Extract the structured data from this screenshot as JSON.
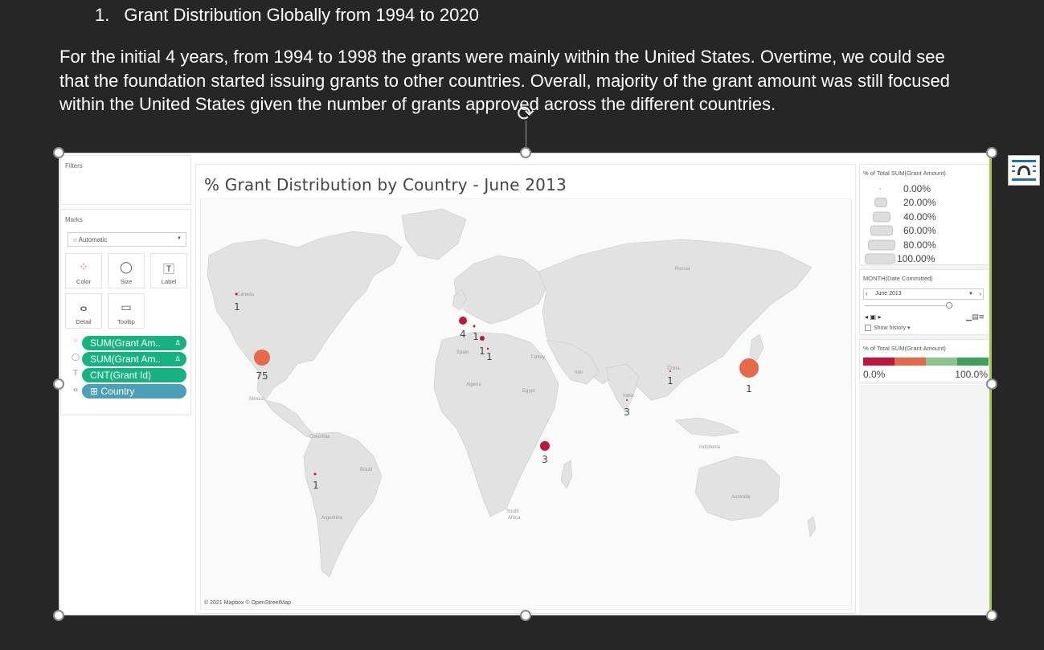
{
  "slide": {
    "heading_number": "1.",
    "heading_text": "Grant Distribution Globally from 1994 to 2020",
    "paragraph": "For the initial 4 years, from 1994 to 1998 the grants were mainly within the United States. Overtime, we could see that the foundation started issuing grants to other countries. Overall, majority of the grant amount was still focused within the United States given the number of grants approved across the different countries."
  },
  "tableau": {
    "filters_label": "Filters",
    "marks_label": "Marks",
    "mark_type": "Automatic",
    "mark_buttons": [
      {
        "label": "Color",
        "glyph": "⁘"
      },
      {
        "label": "Size",
        "glyph": "◯"
      },
      {
        "label": "Label",
        "glyph": "T"
      },
      {
        "label": "Detail",
        "glyph": "⋯"
      },
      {
        "label": "Tooltip",
        "glyph": "▭"
      }
    ],
    "pills": [
      {
        "icon": "⁘",
        "text": "SUM(Grant Am..",
        "delta": "Δ",
        "color": "#17b27f"
      },
      {
        "icon": "◯",
        "text": "SUM(Grant Am..",
        "delta": "Δ",
        "color": "#17b27f"
      },
      {
        "icon": "T",
        "text": "CNT(Grant Id)",
        "delta": "",
        "color": "#17b27f"
      },
      {
        "icon": "⋯",
        "text": "⊞ Country",
        "delta": "",
        "color": "#4b9fb7"
      }
    ],
    "viz_title": "% Grant Distribution by Country  - June 2013",
    "attribution": "© 2021 Mapbox © OpenStreetMap",
    "map_labels": [
      {
        "id": "canada",
        "text": "Canada"
      },
      {
        "id": "russia",
        "text": "Russia"
      },
      {
        "id": "spain",
        "text": "Spain"
      },
      {
        "id": "turkey",
        "text": "Turkey"
      },
      {
        "id": "iran",
        "text": "Iran"
      },
      {
        "id": "china",
        "text": "China"
      },
      {
        "id": "mexico",
        "text": "Mexico"
      },
      {
        "id": "algeria",
        "text": "Algeria"
      },
      {
        "id": "egypt",
        "text": "Egypt"
      },
      {
        "id": "india",
        "text": "India"
      },
      {
        "id": "indonesia",
        "text": "Indonesia"
      },
      {
        "id": "colombia",
        "text": "Colombia"
      },
      {
        "id": "brazil",
        "text": "Brazil"
      },
      {
        "id": "australia",
        "text": "Australia"
      },
      {
        "id": "argentina",
        "text": "Argentina"
      },
      {
        "id": "south_africa_1",
        "text": "South"
      },
      {
        "id": "south_africa_2",
        "text": "Africa"
      }
    ],
    "size_legend": {
      "title": "% of Total SUM(Grant Amount)",
      "items": [
        "0.00%",
        "20.00%",
        "40.00%",
        "60.00%",
        "80.00%",
        "100.00%"
      ]
    },
    "month_filter": {
      "title": "MONTH(Date Committed)",
      "value": "June 2013",
      "show_history": "Show history"
    },
    "color_legend": {
      "title": "% of Total SUM(Grant Amount)",
      "min_label": "0.0%",
      "max_label": "100.0%",
      "colors": [
        "#c0163c",
        "#e8694a",
        "#8cc48e",
        "#3ea05a"
      ]
    }
  },
  "chart_data": {
    "type": "scatter",
    "description_units": "grant count labels per country marker",
    "points": [
      {
        "country": "United States",
        "count": 75
      },
      {
        "country": "Canada",
        "count": 1
      },
      {
        "country": "United Kingdom",
        "count": 4
      },
      {
        "country": "Netherlands",
        "count": 1
      },
      {
        "country": "Switzerland",
        "count": 1
      },
      {
        "country": "Italy",
        "count": 1
      },
      {
        "country": "China",
        "count": 1
      },
      {
        "country": "Japan",
        "count": 1
      },
      {
        "country": "India",
        "count": 3
      },
      {
        "country": "Kenya",
        "count": 3
      },
      {
        "country": "Peru",
        "count": 1
      }
    ]
  }
}
